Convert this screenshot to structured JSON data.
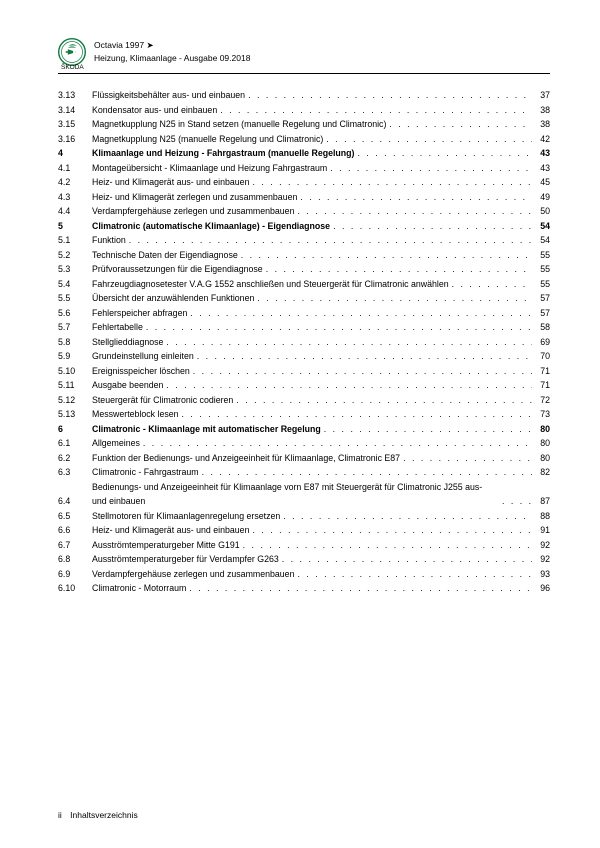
{
  "header": {
    "model": "Octavia 1997 ➤",
    "subtitle": "Heizung, Klimaanlage - Ausgabe 09.2018",
    "brand": "ŠKODA"
  },
  "logo": {
    "ring_color": "#0e7a3c",
    "inner_color": "#0e7a3c",
    "bg_color": "#ffffff"
  },
  "toc": [
    {
      "num": "3.13",
      "title": "Flüssigkeitsbehälter aus- und einbauen",
      "page": "37",
      "section": false
    },
    {
      "num": "3.14",
      "title": "Kondensator aus- und einbauen",
      "page": "38",
      "section": false
    },
    {
      "num": "3.15",
      "title": "Magnetkupplung N25 in Stand setzen (manuelle Regelung und Climatronic)",
      "page": "38",
      "section": false
    },
    {
      "num": "3.16",
      "title": "Magnetkupplung N25 (manuelle Regelung und Climatronic)",
      "page": "42",
      "section": false
    },
    {
      "num": "4",
      "title": "Klimaanlage und Heizung - Fahrgastraum (manuelle Regelung)",
      "page": "43",
      "section": true
    },
    {
      "num": "4.1",
      "title": "Montageübersicht - Klimaanlage und Heizung Fahrgastraum",
      "page": "43",
      "section": false
    },
    {
      "num": "4.2",
      "title": "Heiz- und Klimagerät aus- und einbauen",
      "page": "45",
      "section": false
    },
    {
      "num": "4.3",
      "title": "Heiz- und Klimagerät zerlegen und zusammenbauen",
      "page": "49",
      "section": false
    },
    {
      "num": "4.4",
      "title": "Verdampfergehäuse zerlegen und zusammenbauen",
      "page": "50",
      "section": false
    },
    {
      "num": "5",
      "title": "Climatronic (automatische Klimaanlage) - Eigendiagnose",
      "page": "54",
      "section": true
    },
    {
      "num": "5.1",
      "title": "Funktion",
      "page": "54",
      "section": false
    },
    {
      "num": "5.2",
      "title": "Technische Daten der Eigendiagnose",
      "page": "55",
      "section": false
    },
    {
      "num": "5.3",
      "title": "Prüfvoraussetzungen für die Eigendiagnose",
      "page": "55",
      "section": false
    },
    {
      "num": "5.4",
      "title": "Fahrzeugdiagnosetester V.A.G 1552 anschließen und Steuergerät für Climatronic anwählen",
      "page": "55",
      "section": false,
      "wrap": true
    },
    {
      "num": "5.5",
      "title": "Übersicht der anzuwählenden Funktionen",
      "page": "57",
      "section": false
    },
    {
      "num": "5.6",
      "title": "Fehlerspeicher abfragen",
      "page": "57",
      "section": false
    },
    {
      "num": "5.7",
      "title": "Fehlertabelle",
      "page": "58",
      "section": false
    },
    {
      "num": "5.8",
      "title": "Stellglieddiagnose",
      "page": "69",
      "section": false
    },
    {
      "num": "5.9",
      "title": "Grundeinstellung einleiten",
      "page": "70",
      "section": false
    },
    {
      "num": "5.10",
      "title": "Ereignisspeicher löschen",
      "page": "71",
      "section": false
    },
    {
      "num": "5.11",
      "title": "Ausgabe beenden",
      "page": "71",
      "section": false
    },
    {
      "num": "5.12",
      "title": "Steuergerät für Climatronic codieren",
      "page": "72",
      "section": false
    },
    {
      "num": "5.13",
      "title": "Messwerteblock lesen",
      "page": "73",
      "section": false
    },
    {
      "num": "6",
      "title": "Climatronic - Klimaanlage mit automatischer Regelung",
      "page": "80",
      "section": true
    },
    {
      "num": "6.1",
      "title": "Allgemeines",
      "page": "80",
      "section": false
    },
    {
      "num": "6.2",
      "title": "Funktion der Bedienungs- und Anzeigeeinheit für Klimaanlage, Climatronic E87",
      "page": "80",
      "section": false
    },
    {
      "num": "6.3",
      "title": "Climatronic - Fahrgastraum",
      "page": "82",
      "section": false
    },
    {
      "num": "6.4",
      "title": "Bedienungs- und Anzeigeeinheit für Klimaanlage vorn E87 mit Steuergerät für Climatronic J255 aus- und einbauen",
      "page": "87",
      "section": false,
      "wrap": true
    },
    {
      "num": "6.5",
      "title": "Stellmotoren für Klimaanlagenregelung ersetzen",
      "page": "88",
      "section": false
    },
    {
      "num": "6.6",
      "title": "Heiz- und Klimagerät aus- und einbauen",
      "page": "91",
      "section": false
    },
    {
      "num": "6.7",
      "title": "Ausströmtemperaturgeber Mitte G191",
      "page": "92",
      "section": false
    },
    {
      "num": "6.8",
      "title": "Ausströmtemperaturgeber für Verdampfer G263",
      "page": "92",
      "section": false
    },
    {
      "num": "6.9",
      "title": "Verdampfergehäuse zerlegen und zusammenbauen",
      "page": "93",
      "section": false
    },
    {
      "num": "6.10",
      "title": "Climatronic - Motorraum",
      "page": "96",
      "section": false
    }
  ],
  "footer": {
    "pagenum": "ii",
    "label": "Inhaltsverzeichnis"
  },
  "style": {
    "font_size_body": 8.8,
    "font_size_header": 8.5,
    "text_color": "#000000",
    "bg_color": "#ffffff"
  }
}
